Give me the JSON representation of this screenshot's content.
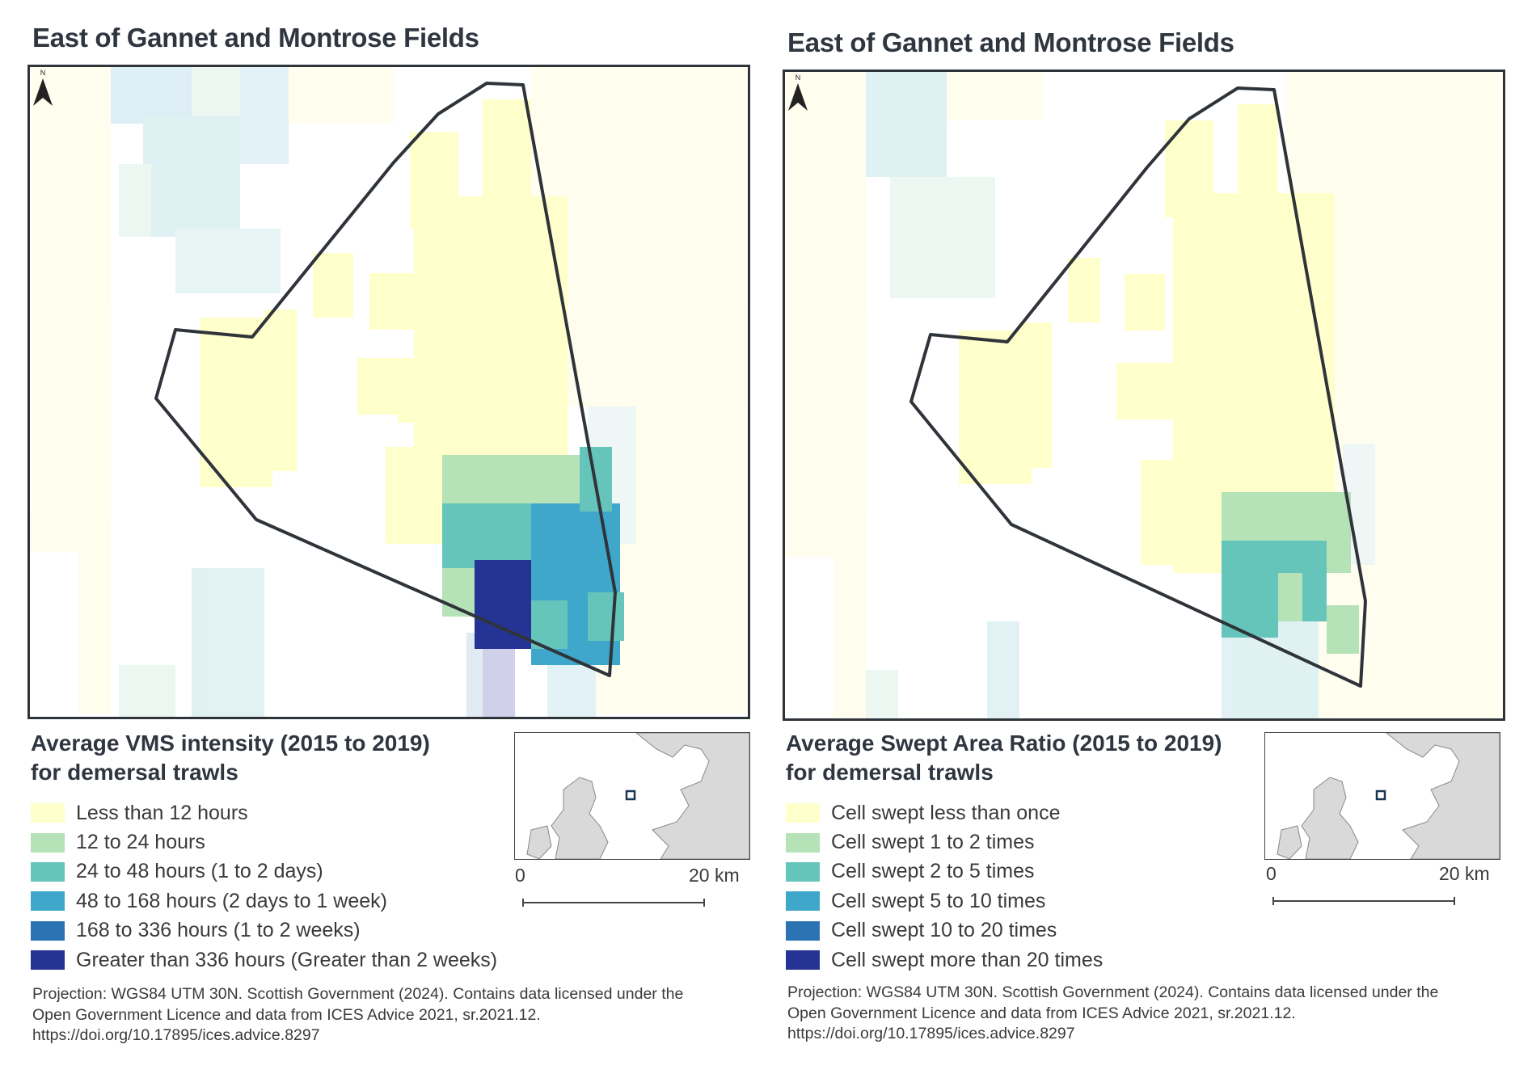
{
  "panels": [
    {
      "title": "East of Gannet and Montrose Fields",
      "legend_title_line1": "Average VMS intensity (2015 to 2019)",
      "legend_title_line2": "for demersal trawls",
      "legend": [
        {
          "label": "Less than 12 hours",
          "color": "#ffffcc"
        },
        {
          "label": "12 to 24 hours",
          "color": "#b5e2b6"
        },
        {
          "label": "24 to 48 hours (1 to 2 days)",
          "color": "#66c5bb"
        },
        {
          "label": "48 to 168 hours (2 days to 1 week)",
          "color": "#3fa7c9"
        },
        {
          "label": "168 to 336 hours (1 to 2 weeks)",
          "color": "#2c73b4"
        },
        {
          "label": "Greater than 336 hours (Greater than 2 weeks)",
          "color": "#253494"
        }
      ],
      "scale_zero": "0",
      "scale_max": "20 km",
      "north_label": "N",
      "credits_line1": "Projection: WGS84 UTM 30N. Scottish Government (2024). Contains data licensed under the",
      "credits_line2": "Open Government Licence and data from ICES Advice 2021, sr.2021.12.",
      "credits_line3": "https://doi.org/10.17895/ices.advice.8297"
    },
    {
      "title": "East of Gannet and Montrose Fields",
      "legend_title_line1": "Average Swept Area Ratio (2015 to 2019)",
      "legend_title_line2": "for demersal trawls",
      "legend": [
        {
          "label": "Cell swept less than once",
          "color": "#ffffcc"
        },
        {
          "label": "Cell swept 1 to 2 times",
          "color": "#b5e2b6"
        },
        {
          "label": "Cell swept 2 to 5 times",
          "color": "#66c5bb"
        },
        {
          "label": "Cell swept 5 to 10 times",
          "color": "#3fa7c9"
        },
        {
          "label": "Cell swept 10 to 20 times",
          "color": "#2c73b4"
        },
        {
          "label": "Cell swept more than 20 times",
          "color": "#253494"
        }
      ],
      "scale_zero": "0",
      "scale_max": "20 km",
      "north_label": "N",
      "credits_line1": "Projection: WGS84 UTM 30N. Scottish Government (2024). Contains data licensed under the",
      "credits_line2": "Open Government Licence and data from ICES Advice 2021, sr.2021.12.",
      "credits_line3": "https://doi.org/10.17895/ices.advice.8297"
    }
  ]
}
